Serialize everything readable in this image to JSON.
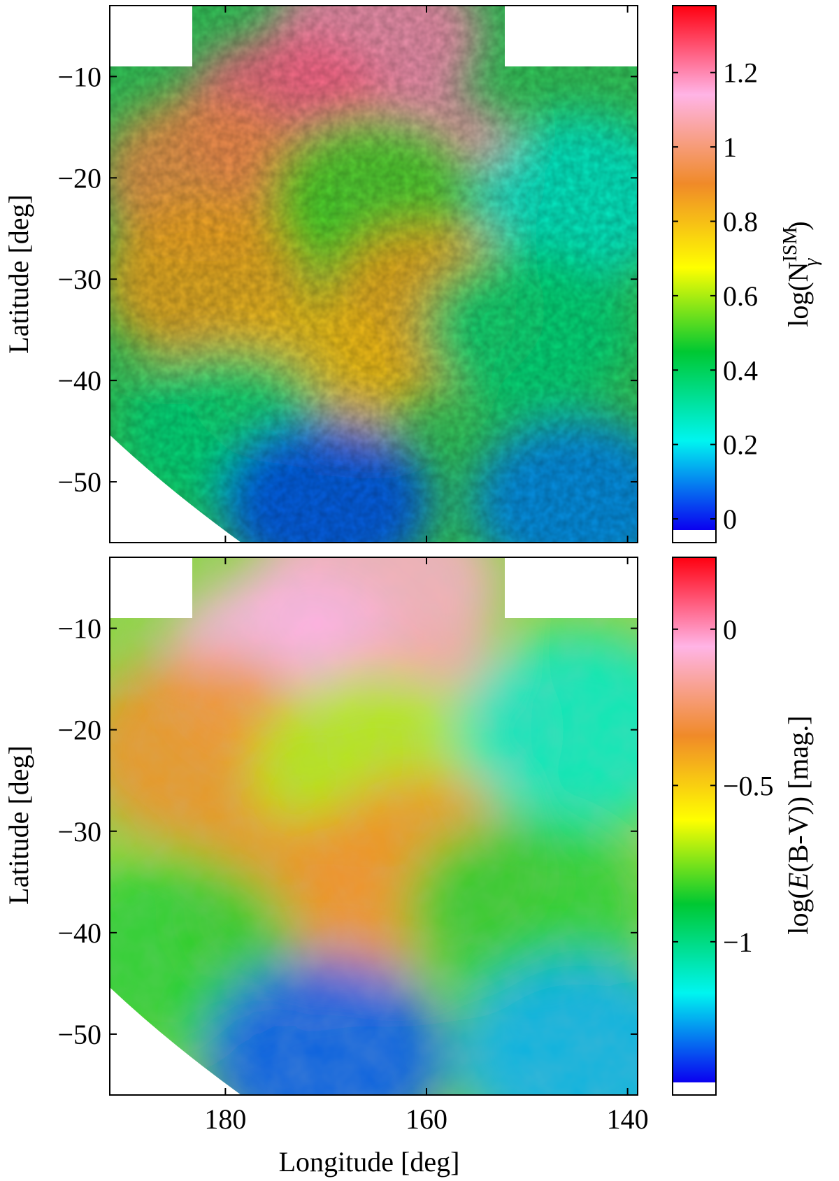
{
  "chart_data": [
    {
      "type": "heatmap",
      "panel": "top",
      "xlabel": "",
      "ylabel": "Latitude [deg]",
      "xlim": [
        191.5,
        139
      ],
      "ylim": [
        -56,
        -3
      ],
      "xticks": [
        180,
        160,
        140
      ],
      "xtick_labels": [
        "",
        "",
        ""
      ],
      "yticks": [
        -10,
        -20,
        -30,
        -40,
        -50
      ],
      "ytick_labels": [
        "−10",
        "−20",
        "−30",
        "−40",
        "−50"
      ],
      "colorbar": {
        "label_main": "log(N",
        "label_sub": "γ",
        "label_sup": "ISM",
        "label_tail": ")",
        "range": [
          -0.03,
          1.38
        ],
        "ticks": [
          0,
          0.2,
          0.4,
          0.6,
          0.8,
          1,
          1.2
        ],
        "tick_labels": [
          "0",
          "0.2",
          "0.4",
          "0.6",
          "0.8",
          "1",
          "1.2"
        ],
        "colormap": [
          "#0a00f0",
          "#00f5f0",
          "#00c832",
          "#ffff00",
          "#f08a28",
          "#ffb4e6",
          "#ff0010"
        ]
      },
      "regions": [
        {
          "lon": 165,
          "lat": -6,
          "value": 1.2
        },
        {
          "lon": 174,
          "lat": -14,
          "value": 1.25
        },
        {
          "lon": 160,
          "lat": -20,
          "value": 1.2
        },
        {
          "lon": 182,
          "lat": -20,
          "value": 0.95
        },
        {
          "lon": 182,
          "lat": -30,
          "value": 0.85
        },
        {
          "lon": 165,
          "lat": -22,
          "value": 0.5
        },
        {
          "lon": 160,
          "lat": -33,
          "value": 0.85
        },
        {
          "lon": 172,
          "lat": -40,
          "value": 0.8
        },
        {
          "lon": 145,
          "lat": -22,
          "value": 0.25
        },
        {
          "lon": 150,
          "lat": -35,
          "value": 0.35
        },
        {
          "lon": 180,
          "lat": -45,
          "value": 0.35
        },
        {
          "lon": 170,
          "lat": -52,
          "value": 0.05
        },
        {
          "lon": 145,
          "lat": -52,
          "value": 0.1
        }
      ]
    },
    {
      "type": "heatmap",
      "panel": "bottom",
      "xlabel": "Longitude [deg]",
      "ylabel": "Latitude [deg]",
      "xlim": [
        191.5,
        139
      ],
      "ylim": [
        -56,
        -3
      ],
      "xticks": [
        180,
        160,
        140
      ],
      "xtick_labels": [
        "180",
        "160",
        "140"
      ],
      "yticks": [
        -10,
        -20,
        -30,
        -40,
        -50
      ],
      "ytick_labels": [
        "−10",
        "−20",
        "−30",
        "−40",
        "−50"
      ],
      "colorbar": {
        "label_main": "log(",
        "label_tilde": "E",
        "label_tail": "(B-V)) [mag.]",
        "range": [
          -1.45,
          0.23
        ],
        "ticks": [
          0,
          -0.5,
          -1
        ],
        "tick_labels": [
          "0",
          "−0.5",
          "−1"
        ],
        "colormap": [
          "#0a00f0",
          "#00f5f0",
          "#00c832",
          "#ffff00",
          "#f08a28",
          "#ffb4e6",
          "#ff0010"
        ]
      },
      "regions": [
        {
          "lon": 165,
          "lat": -6,
          "value": -0.1
        },
        {
          "lon": 174,
          "lat": -14,
          "value": -0.05
        },
        {
          "lon": 160,
          "lat": -20,
          "value": -0.15
        },
        {
          "lon": 182,
          "lat": -22,
          "value": -0.35
        },
        {
          "lon": 165,
          "lat": -24,
          "value": -0.7
        },
        {
          "lon": 160,
          "lat": -34,
          "value": -0.35
        },
        {
          "lon": 172,
          "lat": -38,
          "value": -0.35
        },
        {
          "lon": 145,
          "lat": -20,
          "value": -1.1
        },
        {
          "lon": 150,
          "lat": -38,
          "value": -0.85
        },
        {
          "lon": 185,
          "lat": -42,
          "value": -0.85
        },
        {
          "lon": 170,
          "lat": -52,
          "value": -1.35
        },
        {
          "lon": 145,
          "lat": -52,
          "value": -1.25
        }
      ]
    }
  ]
}
